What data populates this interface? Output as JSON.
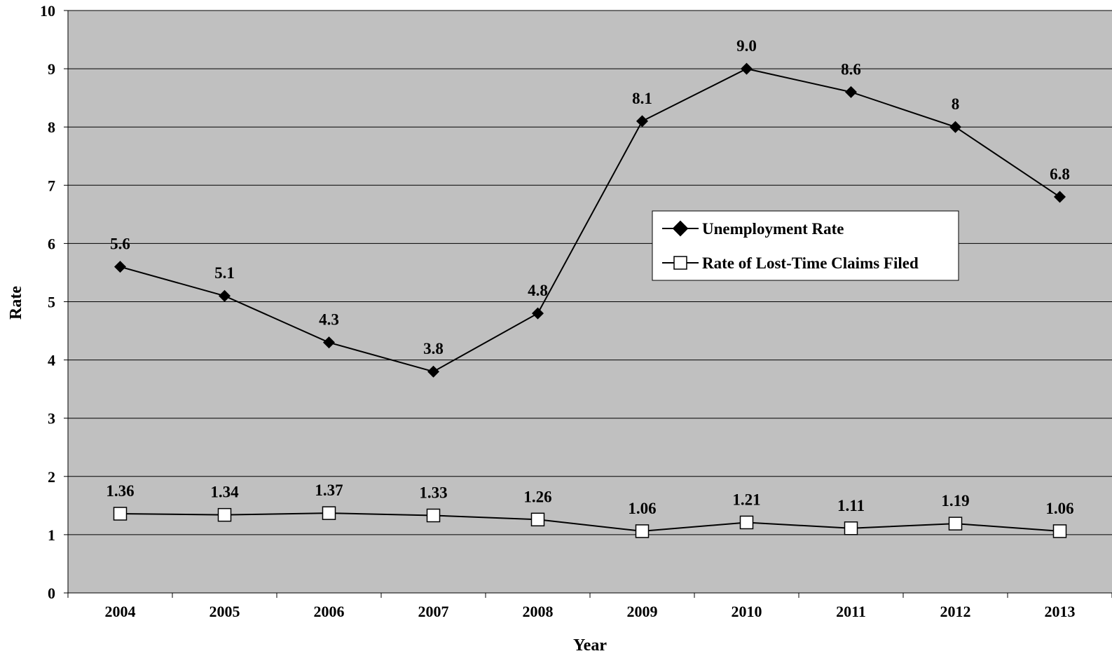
{
  "chart_data": {
    "type": "line",
    "title": "",
    "xlabel": "Year",
    "ylabel": "Rate",
    "categories": [
      "2004",
      "2005",
      "2006",
      "2007",
      "2008",
      "2009",
      "2010",
      "2011",
      "2012",
      "2013"
    ],
    "ylim": [
      0,
      10
    ],
    "yticks": [
      "0",
      "1",
      "2",
      "3",
      "4",
      "5",
      "6",
      "7",
      "8",
      "9",
      "10"
    ],
    "grid": "horizontal",
    "legend_position": "center-right",
    "colors": {
      "plot_background": "#c0c0c0",
      "line": "#000000",
      "square_fill": "#ffffff"
    },
    "series": [
      {
        "name": "Unemployment Rate",
        "marker": "diamond-filled",
        "values": [
          5.6,
          5.1,
          4.3,
          3.8,
          4.8,
          8.1,
          9.0,
          8.6,
          8,
          6.8
        ],
        "labels": [
          "5.6",
          "5.1",
          "4.3",
          "3.8",
          "4.8",
          "8.1",
          "9.0",
          "8.6",
          "8",
          "6.8"
        ]
      },
      {
        "name": "Rate of Lost-Time Claims Filed",
        "marker": "square-open",
        "values": [
          1.36,
          1.34,
          1.37,
          1.33,
          1.26,
          1.06,
          1.21,
          1.11,
          1.19,
          1.06
        ],
        "labels": [
          "1.36",
          "1.34",
          "1.37",
          "1.33",
          "1.26",
          "1.06",
          "1.21",
          "1.11",
          "1.19",
          "1.06"
        ]
      }
    ]
  }
}
